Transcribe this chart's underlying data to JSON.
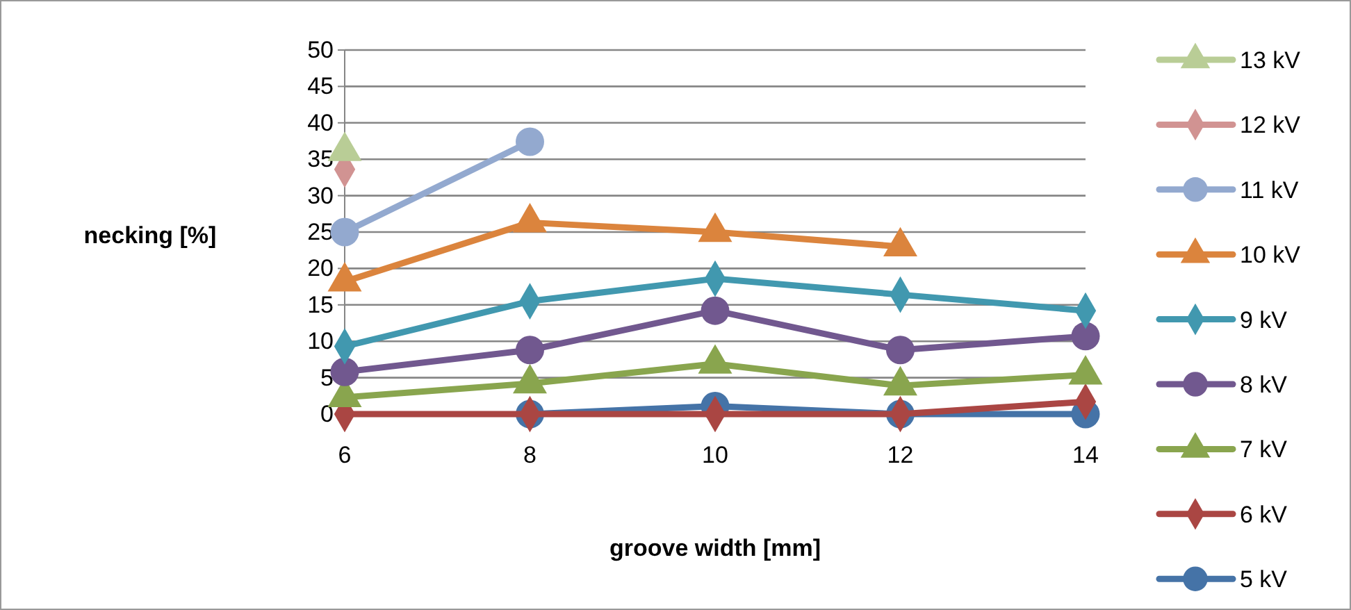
{
  "chart_data": {
    "type": "line",
    "xlabel": "groove width [mm]",
    "ylabel": "necking [%]",
    "categories": [
      "6",
      "8",
      "10",
      "12",
      "14"
    ],
    "ylim": [
      0,
      50
    ],
    "yticks": [
      0,
      5,
      10,
      15,
      20,
      25,
      30,
      35,
      40,
      45,
      50
    ],
    "grid": "y",
    "legend": "right",
    "line_style": "solid",
    "series": [
      {
        "name": "5 kV",
        "color": "#4573a7",
        "marker": "circle",
        "values": [
          null,
          0,
          1.1,
          0,
          0
        ]
      },
      {
        "name": "6 kV",
        "color": "#aa4643",
        "marker": "diamond",
        "values": [
          0,
          0,
          0,
          0,
          1.7
        ]
      },
      {
        "name": "7 kV",
        "color": "#89a54e",
        "marker": "triangle",
        "values": [
          2.3,
          4.2,
          6.9,
          3.9,
          5.4
        ]
      },
      {
        "name": "8 kV",
        "color": "#71588f",
        "marker": "circle",
        "values": [
          5.8,
          8.8,
          14.2,
          8.8,
          10.7
        ]
      },
      {
        "name": "9 kV",
        "color": "#4198af",
        "marker": "diamond",
        "values": [
          9.3,
          15.5,
          18.6,
          16.4,
          14.2
        ]
      },
      {
        "name": "10 kV",
        "color": "#db843d",
        "marker": "triangle",
        "values": [
          18.2,
          26.3,
          25,
          23,
          null
        ]
      },
      {
        "name": "11 kV",
        "color": "#93a9cf",
        "marker": "circle",
        "values": [
          25,
          37.4,
          null,
          null,
          null
        ]
      },
      {
        "name": "12 kV",
        "color": "#d19392",
        "marker": "diamond",
        "values": [
          33.6,
          null,
          null,
          null,
          null
        ]
      },
      {
        "name": "13 kV",
        "color": "#b9cd96",
        "marker": "triangle",
        "values": [
          36.1,
          null,
          null,
          null,
          null
        ]
      }
    ]
  }
}
